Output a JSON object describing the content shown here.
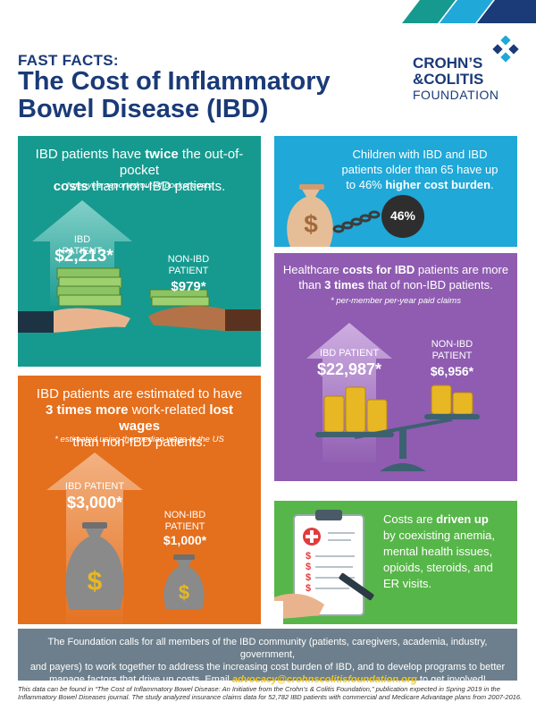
{
  "header": {
    "eyebrow": "FAST FACTS:",
    "title_line1": "The Cost of Inflammatory",
    "title_line2": "Bowel Disease (IBD)"
  },
  "logo": {
    "line1": "CROHN’S",
    "line2": "&COLITIS",
    "line3": "FOUNDATION"
  },
  "out_of_pocket": {
    "headline_pre": "IBD patients have ",
    "headline_bold1": "twice",
    "headline_mid": " the out-of-pocket",
    "headline_bold2": "costs",
    "headline_post": " than non-IBD patients.",
    "note": "* per-year reported out-of-pocket costs",
    "ibd_label": "IBD PATIENT",
    "ibd_value": "$2,213*",
    "non_ibd_label_1": "NON-IBD",
    "non_ibd_label_2": "PATIENT",
    "non_ibd_value": "$979*"
  },
  "children": {
    "line1": "Children with IBD and IBD",
    "line2": "patients older than 65 have up",
    "line3_pre": "to 46% ",
    "line3_bold": "higher cost burden",
    "line3_post": ".",
    "ball_value": "46%"
  },
  "healthcare": {
    "line1_pre": "Healthcare ",
    "line1_bold": "costs for IBD",
    "line1_post": " patients are more",
    "line2_pre": "than ",
    "line2_bold": "3 times",
    "line2_post": " that of non-IBD patients.",
    "note": "* per-member per-year paid claims",
    "ibd_label": "IBD PATIENT",
    "ibd_value": "$22,987*",
    "non_ibd_label_1": "NON-IBD",
    "non_ibd_label_2": "PATIENT",
    "non_ibd_value": "$6,956*"
  },
  "wages": {
    "line1": "IBD patients are estimated to have",
    "line2_bold1": "3 times more",
    "line2_mid": " work-related ",
    "line2_bold2": "lost wages",
    "line3": "than non-IBD patients.",
    "note": "* estimated using the median wage in the US",
    "ibd_label": "IBD PATIENT",
    "ibd_value": "$3,000*",
    "non_ibd_label_1": "NON-IBD",
    "non_ibd_label_2": "PATIENT",
    "non_ibd_value": "$1,000*"
  },
  "drivers": {
    "line1_pre": "Costs are ",
    "line1_bold": "driven up",
    "line2": "by coexisting anemia,",
    "line3": "mental health issues,",
    "line4": "opioids, steroids, and",
    "line5": "ER visits.",
    "clipboard_marks": [
      "$",
      "$",
      "$",
      "$"
    ]
  },
  "footer": {
    "text1": "The Foundation calls for all members of the IBD community (patients, caregivers, academia, industry, government,",
    "text2": "and payers) to work together to address the increasing cost burden of IBD, and to develop programs to better",
    "text3": "manage factors that drive up costs. Email ",
    "email": "advocacy@crohnscolitisfoundation.org",
    "text4": " to get involved!"
  },
  "source": {
    "line1": "This data can be found in “The Cost of Inflammatory Bowel Disease: An Initiative from the Crohn’s & Colitis Foundation,” publication expected in Spring 2019 in the",
    "line2": "Inflammatory Bowel Diseases journal. The study analyzed insurance claims data for 52,782 IBD patients with commercial and Medicare Advantage plans from 2007-2016."
  },
  "colors": {
    "navy": "#1a3a78",
    "teal": "#169a8f",
    "blue": "#1fa8d8",
    "purple": "#8f5cb1",
    "orange": "#e46f1d",
    "green": "#57b649",
    "footer_gray": "#6d7f8c",
    "email_yellow": "#f2c81d"
  }
}
